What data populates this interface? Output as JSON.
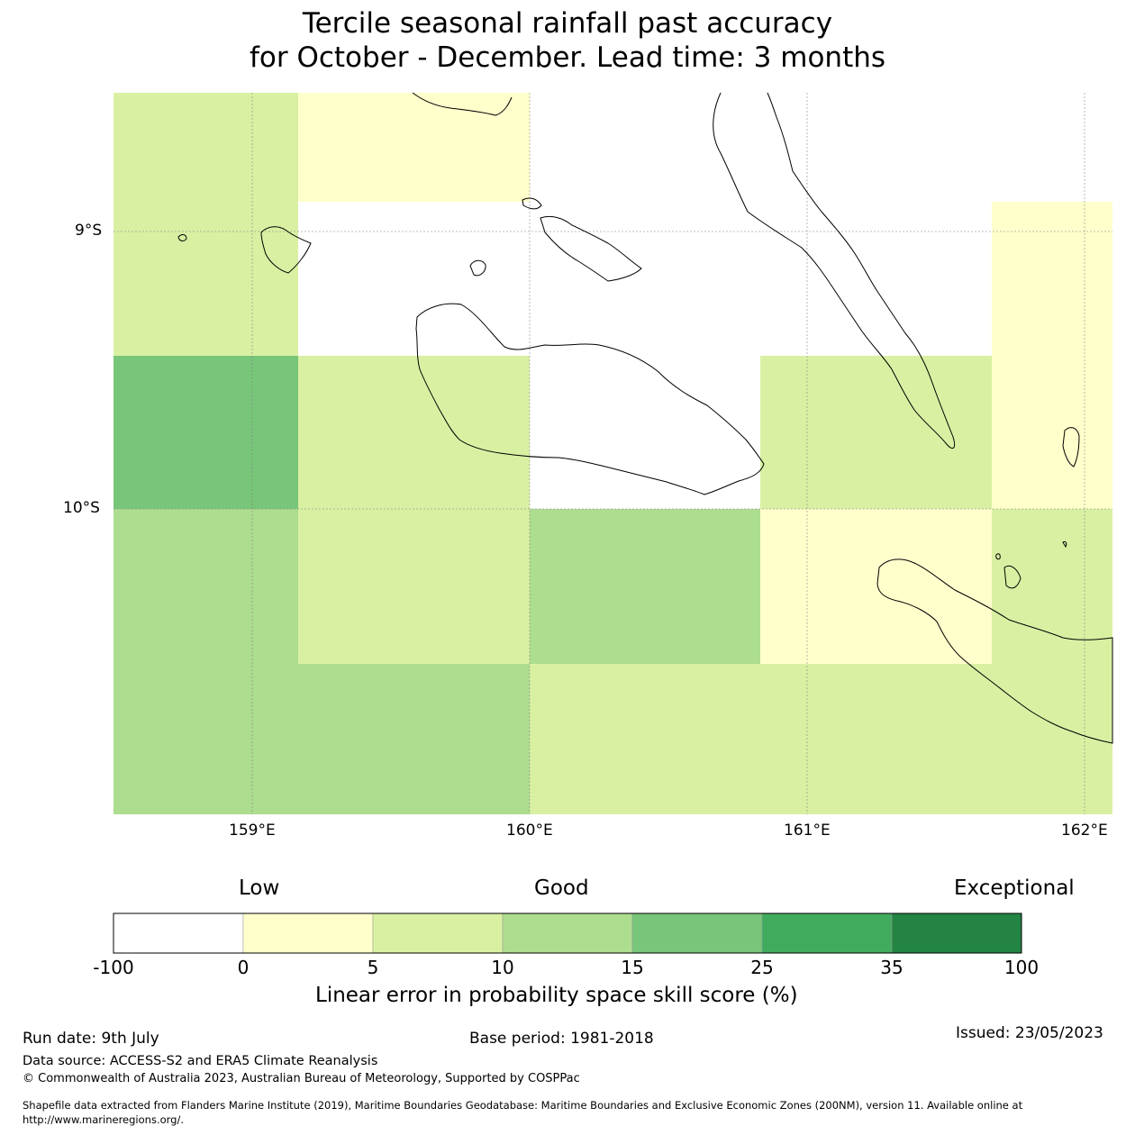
{
  "title_line1": "Tercile seasonal rainfall past accuracy",
  "title_line2": "for October - December. Lead time: 3 months",
  "map": {
    "lon_labels": [
      "159°E",
      "160°E",
      "161°E",
      "162°E"
    ],
    "lat_labels": [
      "9°S",
      "10°S"
    ],
    "skill_grid": {
      "description_units": "skill score category by cell",
      "rows": [
        [
          "5-10",
          "0-5",
          "0-5",
          "no-data",
          "no-data"
        ],
        [
          "5-10",
          "no-skill",
          "no-skill",
          "no-skill",
          "0-5"
        ],
        [
          "15-25",
          "5-10",
          "no-skill",
          "5-10",
          "0-5"
        ],
        [
          "10-15",
          "5-10",
          "10-15",
          "0-5",
          "5-10"
        ],
        [
          "10-15",
          "10-15",
          "5-10",
          "5-10",
          "5-10"
        ]
      ]
    }
  },
  "colorbar": {
    "label_low": "Low",
    "label_good": "Good",
    "label_exceptional": "Exceptional",
    "ticks": [
      "-100",
      "0",
      "5",
      "10",
      "15",
      "25",
      "35",
      "100"
    ],
    "colors": [
      "#ffffff",
      "#ffffcc",
      "#d9f0a3",
      "#addd8e",
      "#78c679",
      "#41ab5d",
      "#238443"
    ],
    "title": "Linear error in probability space skill score (%)"
  },
  "footer": {
    "run_date": "Run date: 9th July",
    "base_period": "Base period: 1981-2018",
    "issued": "Issued: 23/05/2023",
    "data_source": "Data source: ACCESS-S2 and ERA5 Climate Reanalysis",
    "copyright": "© Commonwealth of Australia 2023, Australian Bureau of Meteorology, Supported by COSPPac",
    "shapefile_line1": "Shapefile data extracted from Flanders Marine Institute (2019), Maritime Boundaries Geodatabase: Maritime Boundaries and Exclusive Economic Zones (200NM), version 11. Available online at",
    "shapefile_line2": "http://www.marineregions.org/."
  }
}
